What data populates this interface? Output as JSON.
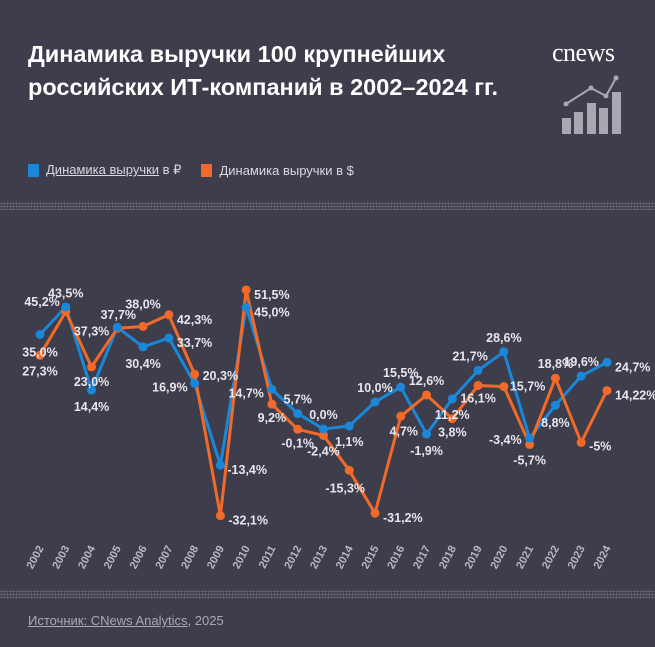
{
  "header": {
    "title": "Динамика выручки 100 крупнейших российских ИТ-компаний в 2002–2024 гг.",
    "logo_text": "cnews"
  },
  "legend": [
    {
      "label_underlined": "Динамика выручки",
      "label_rest": " в ₽",
      "color": "#1b87d8"
    },
    {
      "label_underlined": "",
      "label_rest": "Динамика выручки в $",
      "color": "#f26a2a"
    }
  ],
  "chart_data": {
    "type": "line",
    "title": "Динамика выручки 100 крупнейших российских ИТ-компаний в 2002–2024 гг.",
    "xlabel": "",
    "ylabel": "",
    "ylim": [
      -35,
      55
    ],
    "grid": false,
    "legend_placement": "top-left",
    "x": [
      "2002",
      "2003",
      "2004",
      "2005",
      "2006",
      "2007",
      "2008",
      "2009",
      "2010",
      "2011",
      "2012",
      "2013",
      "2014",
      "2015",
      "2016",
      "2017",
      "2018",
      "2019",
      "2020",
      "2021",
      "2022",
      "2023",
      "2024"
    ],
    "series": [
      {
        "name": "Динамика выручки в ₽",
        "color": "#1b87d8",
        "values": [
          35.0,
          45.2,
          14.4,
          37.7,
          30.4,
          33.7,
          16.9,
          -13.4,
          45.0,
          14.7,
          5.7,
          0.0,
          1.1,
          10.0,
          15.5,
          -1.9,
          11.2,
          21.7,
          28.6,
          -3.4,
          8.8,
          19.6,
          24.7
        ],
        "labels": [
          "35,0%",
          "45,2%",
          "14,4%",
          "37,7%",
          "30,4%",
          "33,7%",
          "16,9%",
          "-13,4%",
          "45,0%",
          "14,7%",
          "5,7%",
          "0,0%",
          "1,1%",
          "10,0%",
          "15,5%",
          "-1,9%",
          "11,2%",
          "21,7%",
          "28,6%",
          "-3,4%",
          "8,8%",
          "19,6%",
          "24,7%"
        ]
      },
      {
        "name": "Динамика выручки в $",
        "color": "#f26a2a",
        "values": [
          27.3,
          43.5,
          23.0,
          37.3,
          38.0,
          42.3,
          20.3,
          -32.1,
          51.5,
          9.2,
          -0.1,
          -2.4,
          -15.3,
          -31.2,
          4.7,
          12.6,
          3.8,
          16.1,
          15.7,
          -5.7,
          18.8,
          -5,
          14.22
        ],
        "labels": [
          "27,3%",
          "43,5%",
          "23,0%",
          "37,3%",
          "38,0%",
          "42,3%",
          "20,3%",
          "-32,1%",
          "51,5%",
          "9,2%",
          "-0,1%",
          "-2,4%",
          "-15,3%",
          "-31,2%",
          "4,7%",
          "12,6%",
          "3,8%",
          "16,1%",
          "15,7%",
          "-5,7%",
          "18,8%",
          "-5%",
          "14,22%"
        ]
      }
    ]
  },
  "footer": {
    "source_label": "Источник: CNews Analytics",
    "year": ", 2025"
  }
}
